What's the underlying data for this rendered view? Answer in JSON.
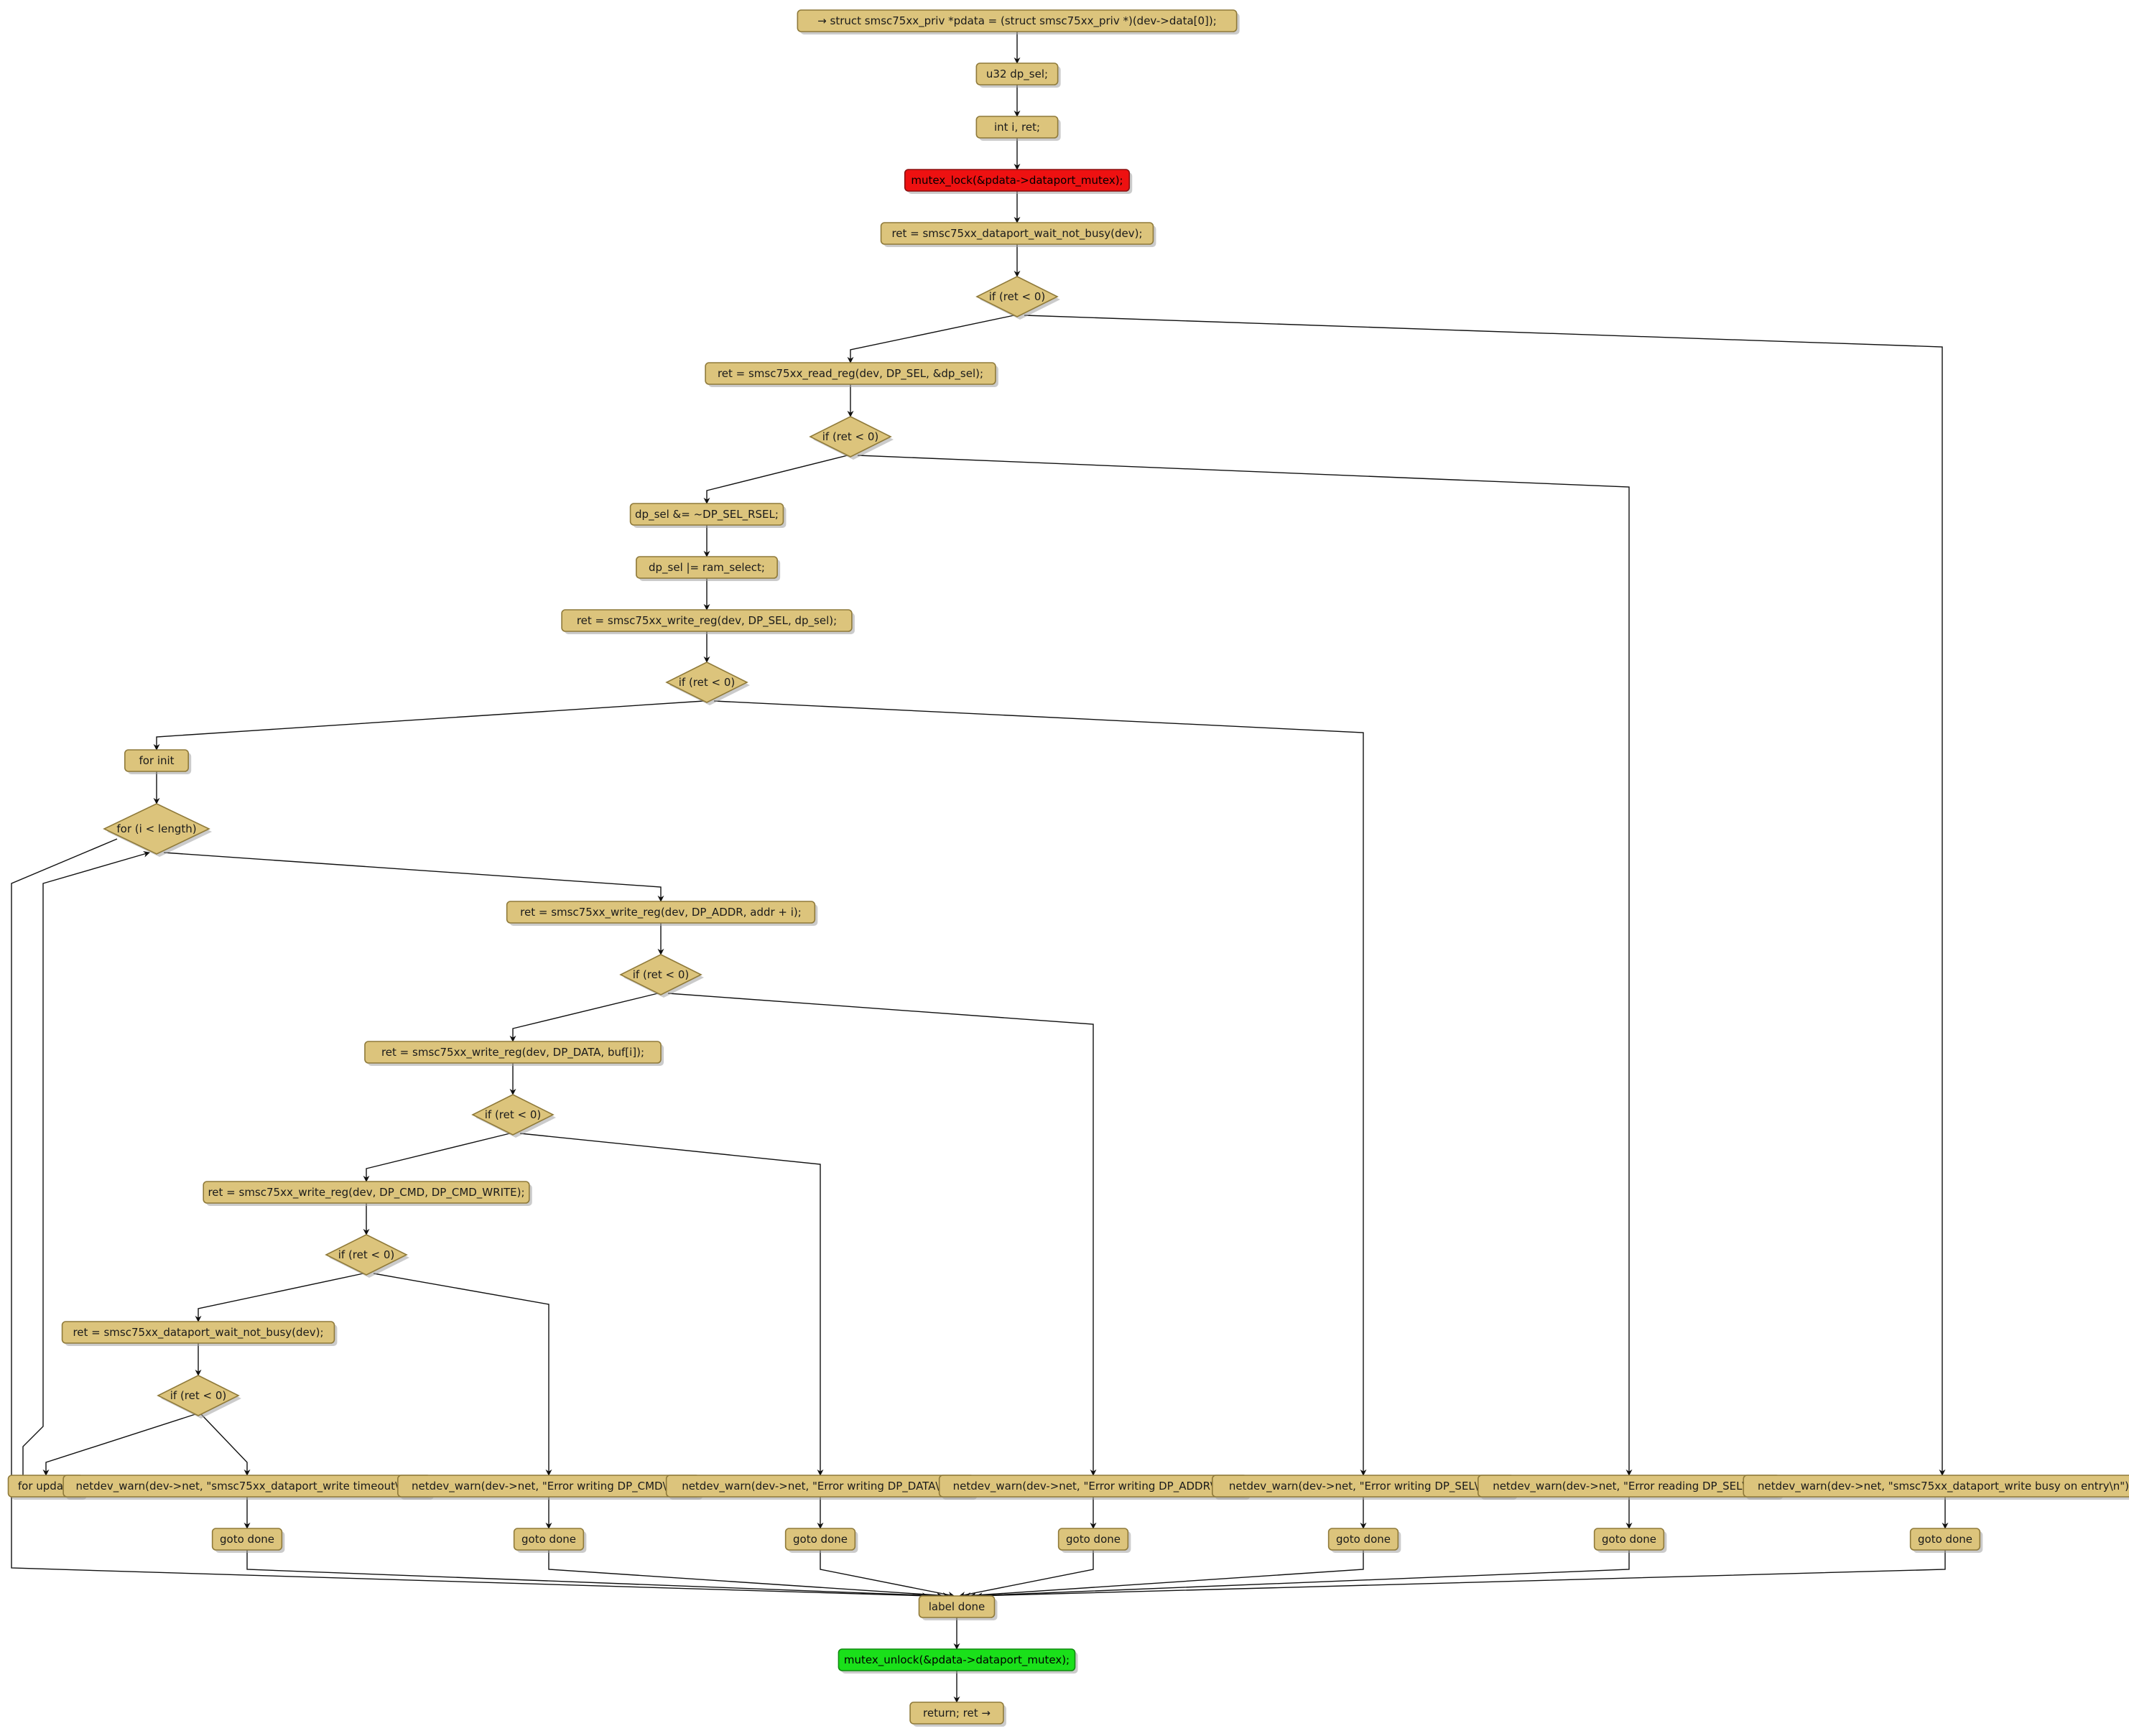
{
  "nodes": [
    {
      "id": "n1",
      "kind": "action",
      "text": "→ struct smsc75xx_priv *pdata = (struct smsc75xx_priv *)(dev->data[0]);"
    },
    {
      "id": "n2",
      "kind": "action",
      "text": "u32 dp_sel;"
    },
    {
      "id": "n3",
      "kind": "action",
      "text": "int i, ret;"
    },
    {
      "id": "n4",
      "kind": "action",
      "color": "#ee1111",
      "text": "mutex_lock(&pdata->dataport_mutex);"
    },
    {
      "id": "n5",
      "kind": "action",
      "text": "ret = smsc75xx_dataport_wait_not_busy(dev);"
    },
    {
      "id": "d1",
      "kind": "decision",
      "text": "if (ret < 0)"
    },
    {
      "id": "n6",
      "kind": "action",
      "text": "ret = smsc75xx_read_reg(dev, DP_SEL, &dp_sel);"
    },
    {
      "id": "d2",
      "kind": "decision",
      "text": "if (ret < 0)"
    },
    {
      "id": "n7",
      "kind": "action",
      "text": "dp_sel &= ~DP_SEL_RSEL;"
    },
    {
      "id": "n8",
      "kind": "action",
      "text": "dp_sel |= ram_select;"
    },
    {
      "id": "n9",
      "kind": "action",
      "text": "ret = smsc75xx_write_reg(dev, DP_SEL, dp_sel);"
    },
    {
      "id": "d3",
      "kind": "decision",
      "text": "if (ret < 0)"
    },
    {
      "id": "n10",
      "kind": "action",
      "text": "for init"
    },
    {
      "id": "d4",
      "kind": "decision",
      "text": "for (i < length)"
    },
    {
      "id": "n11",
      "kind": "action",
      "text": "ret = smsc75xx_write_reg(dev, DP_ADDR, addr + i);"
    },
    {
      "id": "d5",
      "kind": "decision",
      "text": "if (ret < 0)"
    },
    {
      "id": "n12",
      "kind": "action",
      "text": "ret = smsc75xx_write_reg(dev, DP_DATA, buf[i]);"
    },
    {
      "id": "d6",
      "kind": "decision",
      "text": "if (ret < 0)"
    },
    {
      "id": "n13",
      "kind": "action",
      "text": "ret = smsc75xx_write_reg(dev, DP_CMD, DP_CMD_WRITE);"
    },
    {
      "id": "d7",
      "kind": "decision",
      "text": "if (ret < 0)"
    },
    {
      "id": "n14",
      "kind": "action",
      "text": "ret = smsc75xx_dataport_wait_not_busy(dev);"
    },
    {
      "id": "d8",
      "kind": "decision",
      "text": "if (ret < 0)"
    },
    {
      "id": "n15",
      "kind": "action",
      "text": "for update"
    },
    {
      "id": "w1",
      "kind": "action",
      "text": "netdev_warn(dev->net, \"smsc75xx_dataport_write timeout\\n\");"
    },
    {
      "id": "w2",
      "kind": "action",
      "text": "netdev_warn(dev->net, \"Error writing DP_CMD\\n\");"
    },
    {
      "id": "w3",
      "kind": "action",
      "text": "netdev_warn(dev->net, \"Error writing DP_DATA\\n\");"
    },
    {
      "id": "w4",
      "kind": "action",
      "text": "netdev_warn(dev->net, \"Error writing DP_ADDR\\n\");"
    },
    {
      "id": "w5",
      "kind": "action",
      "text": "netdev_warn(dev->net, \"Error writing DP_SEL\\n\");"
    },
    {
      "id": "w6",
      "kind": "action",
      "text": "netdev_warn(dev->net, \"Error reading DP_SEL\\n\");"
    },
    {
      "id": "w7",
      "kind": "action",
      "text": "netdev_warn(dev->net, \"smsc75xx_dataport_write busy on entry\\n\");"
    },
    {
      "id": "g1",
      "kind": "action",
      "text": "goto done"
    },
    {
      "id": "g2",
      "kind": "action",
      "text": "goto done"
    },
    {
      "id": "g3",
      "kind": "action",
      "text": "goto done"
    },
    {
      "id": "g4",
      "kind": "action",
      "text": "goto done"
    },
    {
      "id": "g5",
      "kind": "action",
      "text": "goto done"
    },
    {
      "id": "g6",
      "kind": "action",
      "text": "goto done"
    },
    {
      "id": "g7",
      "kind": "action",
      "text": "goto done"
    },
    {
      "id": "n16",
      "kind": "action",
      "text": "label done"
    },
    {
      "id": "n17",
      "kind": "action",
      "color": "#1ae01a",
      "text": "mutex_unlock(&pdata->dataport_mutex);"
    },
    {
      "id": "n18",
      "kind": "action",
      "text": "return; ret →"
    }
  ],
  "edges": [
    [
      "n1",
      "n2"
    ],
    [
      "n2",
      "n3"
    ],
    [
      "n3",
      "n4"
    ],
    [
      "n4",
      "n5"
    ],
    [
      "n5",
      "d1"
    ],
    [
      "d1",
      "n6"
    ],
    [
      "d1",
      "w7"
    ],
    [
      "n6",
      "d2"
    ],
    [
      "d2",
      "n7"
    ],
    [
      "d2",
      "w6"
    ],
    [
      "n7",
      "n8"
    ],
    [
      "n8",
      "n9"
    ],
    [
      "n9",
      "d3"
    ],
    [
      "d3",
      "n10"
    ],
    [
      "d3",
      "w5"
    ],
    [
      "n10",
      "d4"
    ],
    [
      "d4",
      "n11"
    ],
    [
      "d4",
      "n16"
    ],
    [
      "n11",
      "d5"
    ],
    [
      "d5",
      "n12"
    ],
    [
      "d5",
      "w4"
    ],
    [
      "n12",
      "d6"
    ],
    [
      "d6",
      "n13"
    ],
    [
      "d6",
      "w3"
    ],
    [
      "n13",
      "d7"
    ],
    [
      "d7",
      "n14"
    ],
    [
      "d7",
      "w2"
    ],
    [
      "n14",
      "d8"
    ],
    [
      "d8",
      "n15"
    ],
    [
      "d8",
      "w1"
    ],
    [
      "n15",
      "d4"
    ],
    [
      "w1",
      "g1"
    ],
    [
      "w2",
      "g2"
    ],
    [
      "w3",
      "g3"
    ],
    [
      "w4",
      "g4"
    ],
    [
      "w5",
      "g5"
    ],
    [
      "w6",
      "g6"
    ],
    [
      "w7",
      "g7"
    ],
    [
      "g1",
      "n16"
    ],
    [
      "g2",
      "n16"
    ],
    [
      "g3",
      "n16"
    ],
    [
      "g4",
      "n16"
    ],
    [
      "g5",
      "n16"
    ],
    [
      "g6",
      "n16"
    ],
    [
      "g7",
      "n16"
    ],
    [
      "n16",
      "n17"
    ],
    [
      "n17",
      "n18"
    ]
  ]
}
